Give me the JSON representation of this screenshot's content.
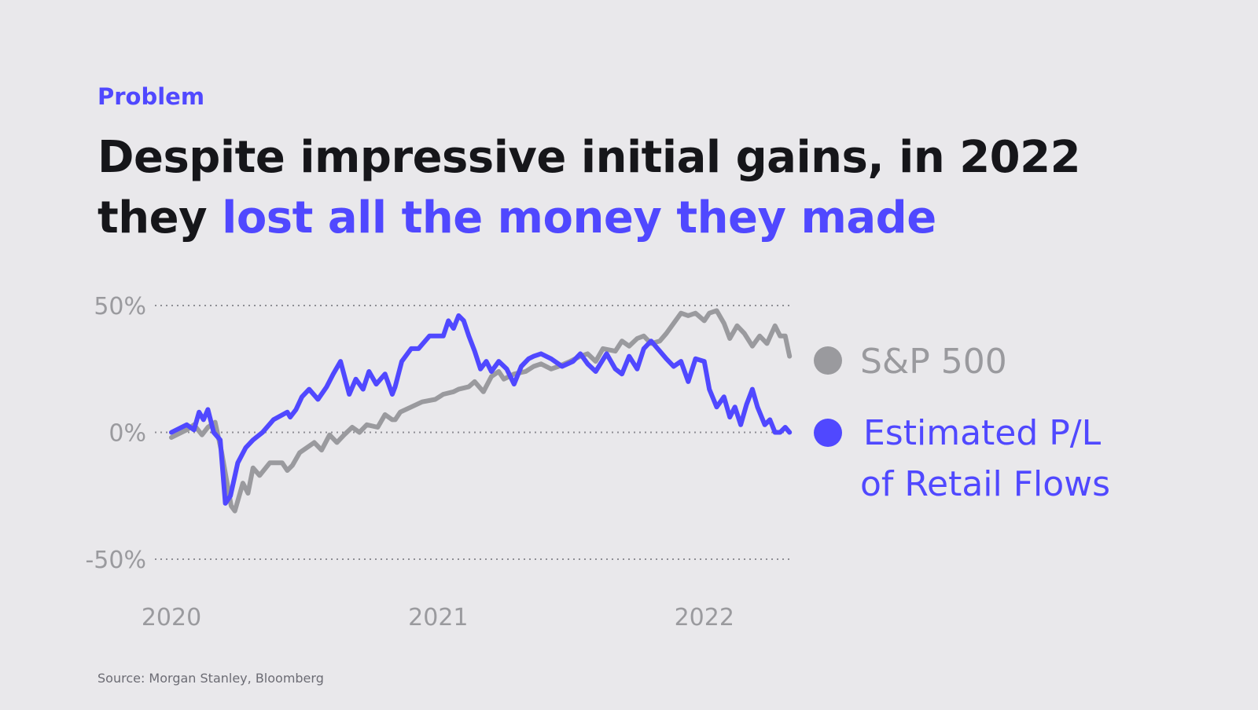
{
  "header": {
    "eyebrow": "Problem",
    "title_part1": "Despite impressive initial gains, in 2022",
    "title_part2": "they ",
    "title_accent": "lost all the money they made"
  },
  "footer": {
    "source": "Source: Morgan Stanley, Bloomberg"
  },
  "colors": {
    "accent": "#5048ff",
    "sp500": "#9a9a9e",
    "background": "#e9e8eb",
    "text": "#16161a"
  },
  "chart_data": {
    "type": "line",
    "y_unit": "%",
    "ylim": [
      -50,
      50
    ],
    "xlim": [
      "2020-01-01",
      "2022-05-01"
    ],
    "yticks": [
      {
        "value": 50,
        "label": "50%"
      },
      {
        "value": 0,
        "label": "0%"
      },
      {
        "value": -50,
        "label": "-50%"
      }
    ],
    "xticks": [
      {
        "value": "2020-01-01",
        "label": "2020"
      },
      {
        "value": "2021-01-01",
        "label": "2021"
      },
      {
        "value": "2022-01-01",
        "label": "2022"
      }
    ],
    "grid": "horizontal dotted",
    "legend_position": "right",
    "series": [
      {
        "name": "S&P 500",
        "color": "#9a9a9e",
        "x": [
          "2020-01-01",
          "2020-01-22",
          "2020-02-01",
          "2020-02-12",
          "2020-02-20",
          "2020-03-01",
          "2020-03-10",
          "2020-03-18",
          "2020-03-23",
          "2020-03-28",
          "2020-04-08",
          "2020-04-15",
          "2020-04-22",
          "2020-05-01",
          "2020-05-15",
          "2020-06-01",
          "2020-06-08",
          "2020-06-15",
          "2020-06-25",
          "2020-07-15",
          "2020-07-25",
          "2020-08-05",
          "2020-08-15",
          "2020-08-25",
          "2020-09-05",
          "2020-09-15",
          "2020-09-25",
          "2020-10-10",
          "2020-10-20",
          "2020-10-30",
          "2020-11-03",
          "2020-11-10",
          "2020-11-25",
          "2020-12-10",
          "2020-12-28",
          "2021-01-08",
          "2021-01-22",
          "2021-01-29",
          "2021-02-12",
          "2021-02-20",
          "2021-03-04",
          "2021-03-15",
          "2021-03-25",
          "2021-04-01",
          "2021-04-15",
          "2021-05-01",
          "2021-05-12",
          "2021-05-22",
          "2021-06-05",
          "2021-06-15",
          "2021-07-01",
          "2021-07-15",
          "2021-07-25",
          "2021-08-05",
          "2021-08-15",
          "2021-09-01",
          "2021-09-10",
          "2021-09-20",
          "2021-10-01",
          "2021-10-10",
          "2021-10-20",
          "2021-11-01",
          "2021-11-10",
          "2021-11-20",
          "2021-11-30",
          "2021-12-10",
          "2021-12-20",
          "2022-01-01",
          "2022-01-08",
          "2022-01-18",
          "2022-01-28",
          "2022-02-05",
          "2022-02-15",
          "2022-02-25",
          "2022-03-08",
          "2022-03-18",
          "2022-03-28",
          "2022-04-08",
          "2022-04-15",
          "2022-04-22",
          "2022-04-28"
        ],
        "values": [
          -2,
          1,
          3,
          -1,
          2,
          4,
          -8,
          -21,
          -29,
          -31,
          -20,
          -24,
          -14,
          -17,
          -12,
          -12,
          -15,
          -13,
          -8,
          -4,
          -7,
          -1,
          -4,
          -1,
          2,
          0,
          3,
          2,
          7,
          5,
          5,
          8,
          10,
          12,
          13,
          15,
          16,
          17,
          18,
          20,
          16,
          22,
          24,
          21,
          23,
          24,
          26,
          27,
          25,
          26,
          28,
          30,
          31,
          28,
          33,
          32,
          36,
          34,
          37,
          38,
          35,
          36,
          39,
          43,
          47,
          46,
          47,
          44,
          47,
          48,
          43,
          37,
          42,
          39,
          34,
          38,
          35,
          42,
          38,
          38,
          30
        ]
      },
      {
        "name": "Estimated P/L of Retail Flows",
        "color": "#5048ff",
        "x": [
          "2020-01-01",
          "2020-01-22",
          "2020-02-01",
          "2020-02-08",
          "2020-02-14",
          "2020-02-20",
          "2020-02-28",
          "2020-03-08",
          "2020-03-15",
          "2020-03-22",
          "2020-04-01",
          "2020-04-12",
          "2020-04-22",
          "2020-05-05",
          "2020-05-20",
          "2020-06-08",
          "2020-06-12",
          "2020-06-20",
          "2020-06-28",
          "2020-07-08",
          "2020-07-20",
          "2020-08-01",
          "2020-08-10",
          "2020-08-20",
          "2020-09-01",
          "2020-09-10",
          "2020-09-20",
          "2020-09-28",
          "2020-10-08",
          "2020-10-20",
          "2020-10-30",
          "2020-11-03",
          "2020-11-12",
          "2020-11-25",
          "2020-12-05",
          "2020-12-20",
          "2021-01-08",
          "2021-01-15",
          "2021-01-22",
          "2021-01-29",
          "2021-02-05",
          "2021-02-12",
          "2021-02-20",
          "2021-02-28",
          "2021-03-08",
          "2021-03-15",
          "2021-03-25",
          "2021-04-05",
          "2021-04-15",
          "2021-04-25",
          "2021-05-05",
          "2021-05-12",
          "2021-05-22",
          "2021-06-05",
          "2021-06-20",
          "2021-07-05",
          "2021-07-15",
          "2021-07-25",
          "2021-08-05",
          "2021-08-20",
          "2021-09-01",
          "2021-09-10",
          "2021-09-20",
          "2021-10-01",
          "2021-10-10",
          "2021-10-20",
          "2021-11-01",
          "2021-11-10",
          "2021-11-20",
          "2021-11-30",
          "2021-12-10",
          "2021-12-20",
          "2022-01-01",
          "2022-01-08",
          "2022-01-18",
          "2022-01-28",
          "2022-02-05",
          "2022-02-12",
          "2022-02-20",
          "2022-02-28",
          "2022-03-08",
          "2022-03-15",
          "2022-03-25",
          "2022-04-01",
          "2022-04-08",
          "2022-04-15",
          "2022-04-22",
          "2022-04-28"
        ],
        "values": [
          0,
          3,
          1,
          8,
          5,
          9,
          0,
          -3,
          -28,
          -25,
          -12,
          -6,
          -3,
          0,
          5,
          8,
          6,
          9,
          14,
          17,
          13,
          18,
          23,
          28,
          15,
          21,
          17,
          24,
          19,
          23,
          15,
          18,
          28,
          33,
          33,
          38,
          38,
          44,
          41,
          46,
          44,
          38,
          32,
          25,
          28,
          24,
          28,
          25,
          19,
          26,
          29,
          30,
          31,
          29,
          26,
          28,
          31,
          27,
          24,
          31,
          25,
          23,
          30,
          25,
          33,
          36,
          32,
          29,
          26,
          28,
          20,
          29,
          28,
          17,
          10,
          14,
          6,
          10,
          3,
          11,
          17,
          10,
          3,
          5,
          0,
          0,
          2,
          0
        ]
      }
    ]
  }
}
